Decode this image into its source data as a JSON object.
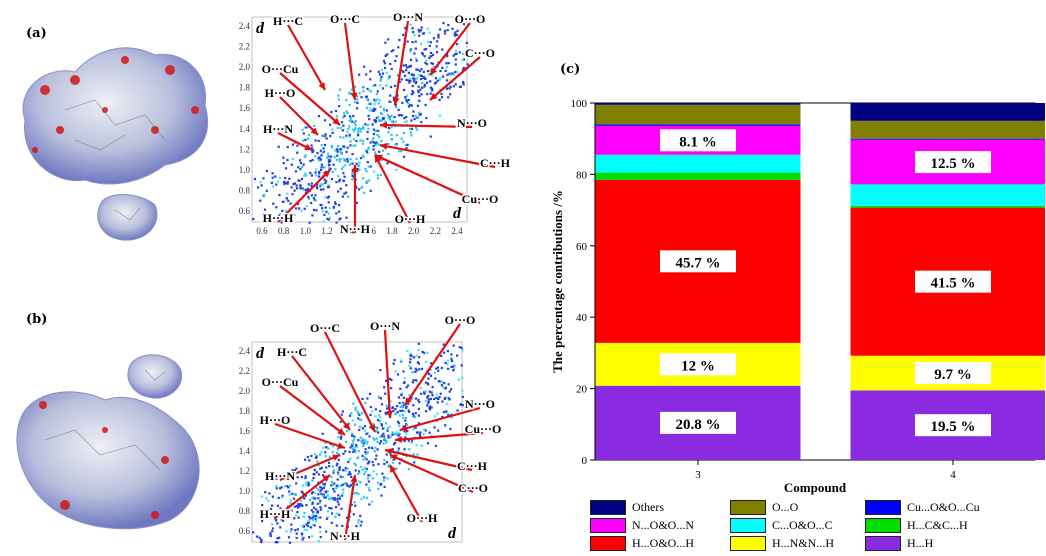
{
  "panels": {
    "a": "(a)",
    "b": "(b)",
    "c": "(c)"
  },
  "fingerprint_a": {
    "axis_d_label": "d",
    "y_ticks": [
      "2.4",
      "2.2",
      "2.0",
      "1.8",
      "1.6",
      "1.4",
      "1.2",
      "1.0",
      "0.8",
      "0.6"
    ],
    "x_ticks": [
      "0.6",
      "0.8",
      "1.0",
      "1.2",
      "1.4",
      "1.6",
      "1.8",
      "2.0",
      "2.2",
      "2.4"
    ],
    "labels": [
      "H···C",
      "O···C",
      "O···N",
      "O···O",
      "C···O",
      "O···Cu",
      "H···O",
      "H···N",
      "N···O",
      "C···H",
      "Cu···O",
      "H···H",
      "N···H",
      "O···H"
    ]
  },
  "fingerprint_b": {
    "axis_d_label": "d",
    "y_ticks": [
      "2.4",
      "2.2",
      "2.0",
      "1.8",
      "1.6",
      "1.4",
      "1.2",
      "1.0",
      "0.8",
      "0.6"
    ],
    "labels": [
      "O···C",
      "O···N",
      "O···O",
      "H···C",
      "O···Cu",
      "H···O",
      "N···O",
      "Cu···O",
      "H···N",
      "C···H",
      "C···O",
      "H···H",
      "N···H",
      "O···H"
    ]
  },
  "chart_data": {
    "type": "bar",
    "stacked": true,
    "categories": [
      "3",
      "4"
    ],
    "xlabel": "Compound",
    "ylabel": "The percentage contributions /%",
    "ylim": [
      0,
      100
    ],
    "yticks": [
      "0",
      "20",
      "40",
      "60",
      "80",
      "100"
    ],
    "series": [
      {
        "name": "H...H",
        "color": "#8a2be2",
        "values": [
          20.8,
          19.5
        ],
        "labels": [
          "20.8 %",
          "19.5 %"
        ]
      },
      {
        "name": "H...N&N...H",
        "color": "#ffff00",
        "values": [
          12.0,
          9.7
        ],
        "labels": [
          "12 %",
          "9.7 %"
        ]
      },
      {
        "name": "H...O&O...H",
        "color": "#ff0000",
        "values": [
          45.7,
          41.5
        ],
        "labels": [
          "45.7 %",
          "41.5 %"
        ]
      },
      {
        "name": "H...C&C...H",
        "color": "#00dd00",
        "values": [
          2.0,
          0.5
        ],
        "labels": [
          "",
          ""
        ]
      },
      {
        "name": "C...O&O...C",
        "color": "#00ffff",
        "values": [
          5.0,
          6.0
        ],
        "labels": [
          "",
          ""
        ]
      },
      {
        "name": "N...O&O...N",
        "color": "#ff00ff",
        "values": [
          8.1,
          12.5
        ],
        "labels": [
          "8.1 %",
          "12.5 %"
        ]
      },
      {
        "name": "Cu...O&O...Cu",
        "color": "#0000ff",
        "values": [
          0.4,
          0.3
        ],
        "labels": [
          "",
          ""
        ]
      },
      {
        "name": "O...O",
        "color": "#808000",
        "values": [
          5.5,
          5.0
        ],
        "labels": [
          "",
          ""
        ]
      },
      {
        "name": "Others",
        "color": "#000080",
        "values": [
          0.5,
          5.0
        ],
        "labels": [
          "",
          ""
        ]
      }
    ],
    "legend": [
      [
        "Others",
        "O...O",
        "Cu...O&O...Cu"
      ],
      [
        "N...O&O...N",
        "C...O&O...C",
        "H...C&C...H"
      ],
      [
        "H...O&O...H",
        "H...N&N...H",
        "H...H"
      ]
    ],
    "legend_placement": "bottom"
  }
}
